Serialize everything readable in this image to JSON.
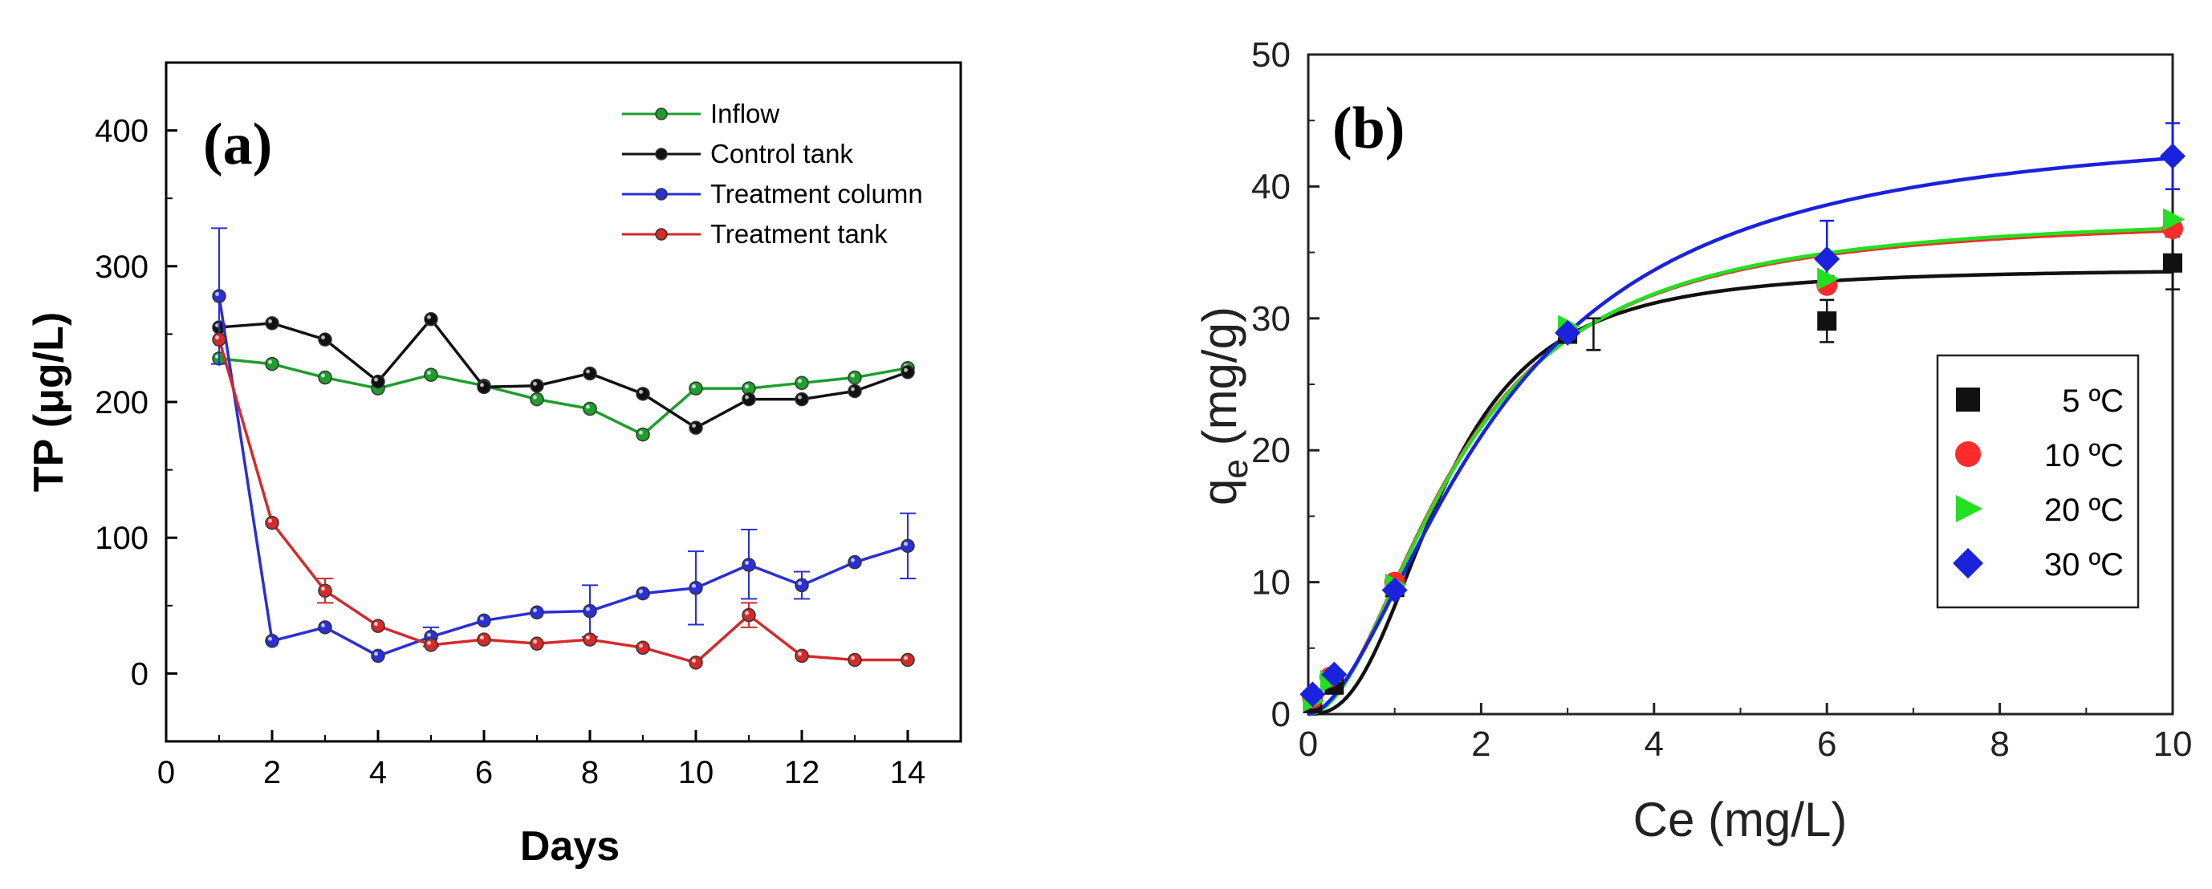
{
  "chart_data": [
    {
      "type": "line",
      "panel_label": "(a)",
      "xlabel": "Days",
      "ylabel": "TP  (μg/L)",
      "xlim": [
        0,
        15
      ],
      "ylim": [
        -50,
        450
      ],
      "xticks": [
        0,
        2,
        4,
        6,
        8,
        10,
        12,
        14
      ],
      "yticks": [
        0,
        100,
        200,
        300,
        400
      ],
      "legend_position": "top-right",
      "x": [
        1,
        2,
        3,
        4,
        5,
        6,
        7,
        8,
        9,
        10,
        11,
        12,
        13,
        14
      ],
      "series": [
        {
          "name": "Inflow",
          "color": "#1e9e2d",
          "values": [
            232,
            228,
            218,
            210,
            220,
            212,
            202,
            195,
            176,
            210,
            210,
            214,
            218,
            225
          ],
          "errors": []
        },
        {
          "name": "Control tank",
          "color": "#111111",
          "values": [
            255,
            258,
            246,
            215,
            261,
            211,
            212,
            221,
            206,
            181,
            202,
            202,
            208,
            222
          ],
          "errors": []
        },
        {
          "name": "Treatment column",
          "color": "#2a2fd6",
          "values": [
            278,
            24,
            34,
            13,
            27,
            39,
            45,
            46,
            59,
            63,
            80,
            65,
            82,
            94
          ],
          "errors": [
            {
              "x": 1,
              "low": 228,
              "high": 328
            },
            {
              "x": 5,
              "low": 20,
              "high": 34
            },
            {
              "x": 8,
              "low": 27,
              "high": 65
            },
            {
              "x": 10,
              "low": 36,
              "high": 90
            },
            {
              "x": 11,
              "low": 55,
              "high": 106
            },
            {
              "x": 12,
              "low": 55,
              "high": 75
            },
            {
              "x": 14,
              "low": 70,
              "high": 118
            }
          ]
        },
        {
          "name": "Treatment tank",
          "color": "#d42a2a",
          "values": [
            246,
            111,
            61,
            35,
            21,
            25,
            22,
            25,
            19,
            8,
            43,
            13,
            10,
            10
          ],
          "errors": [
            {
              "x": 3,
              "low": 52,
              "high": 70
            },
            {
              "x": 11,
              "low": 34,
              "high": 52
            }
          ]
        }
      ]
    },
    {
      "type": "scatter",
      "panel_label": "(b)",
      "xlabel": "Ce (mg/L)",
      "ylabel_main": "q",
      "ylabel_sub": "e",
      "ylabel_rest": " (mg/g)",
      "xlim": [
        0,
        10
      ],
      "ylim": [
        0,
        50
      ],
      "xticks": [
        0,
        2,
        4,
        6,
        8,
        10
      ],
      "yticks": [
        0,
        10,
        20,
        30,
        40,
        50
      ],
      "legend_position": "right",
      "series": [
        {
          "name": "5 ºC",
          "marker": "square",
          "color": "#111111",
          "points": [
            [
              0.05,
              0.8
            ],
            [
              0.3,
              2.2
            ],
            [
              1.0,
              9.6
            ],
            [
              3.0,
              28.8
            ],
            [
              6.0,
              29.8
            ],
            [
              10.0,
              34.2
            ]
          ],
          "fit": {
            "qm": 33.8,
            "n": 2.6,
            "K": 1.55
          }
        },
        {
          "name": "10 ºC",
          "marker": "circle",
          "color": "#ff2a2a",
          "points": [
            [
              0.05,
              1.2
            ],
            [
              0.25,
              2.8
            ],
            [
              1.0,
              10.0
            ],
            [
              3.0,
              29.0
            ],
            [
              6.0,
              32.5
            ],
            [
              10.0,
              36.8
            ]
          ],
          "fit": {
            "qm": 37.8,
            "n": 1.95,
            "K": 1.7
          }
        },
        {
          "name": "20 ºC",
          "marker": "triangle-right",
          "color": "#22e022",
          "points": [
            [
              0.05,
              1.0
            ],
            [
              0.25,
              2.5
            ],
            [
              1.0,
              9.8
            ],
            [
              3.0,
              29.4
            ],
            [
              6.0,
              33.0
            ],
            [
              10.0,
              37.5
            ]
          ],
          "fit": {
            "qm": 38.0,
            "n": 1.95,
            "K": 1.72
          }
        },
        {
          "name": "30 ºC",
          "marker": "diamond",
          "color": "#1a22dd",
          "points": [
            [
              0.05,
              1.5
            ],
            [
              0.3,
              3.0
            ],
            [
              1.0,
              9.4
            ],
            [
              3.0,
              28.9
            ],
            [
              6.0,
              34.5
            ],
            [
              10.0,
              42.3
            ]
          ],
          "fit": {
            "qm": 45.0,
            "n": 1.75,
            "K": 2.15
          }
        }
      ],
      "errors": [
        {
          "x": 3.3,
          "low": 27.6,
          "high": 30.0,
          "color": "#111111"
        },
        {
          "x": 6.0,
          "low": 28.2,
          "high": 31.4,
          "color": "#111111"
        },
        {
          "x": 6.0,
          "low": 33.2,
          "high": 37.4,
          "color": "#1a22dd"
        },
        {
          "x": 10.0,
          "low": 32.2,
          "high": 36.2,
          "color": "#111111"
        },
        {
          "x": 10.0,
          "low": 39.8,
          "high": 44.8,
          "color": "#1a22dd"
        }
      ]
    }
  ]
}
